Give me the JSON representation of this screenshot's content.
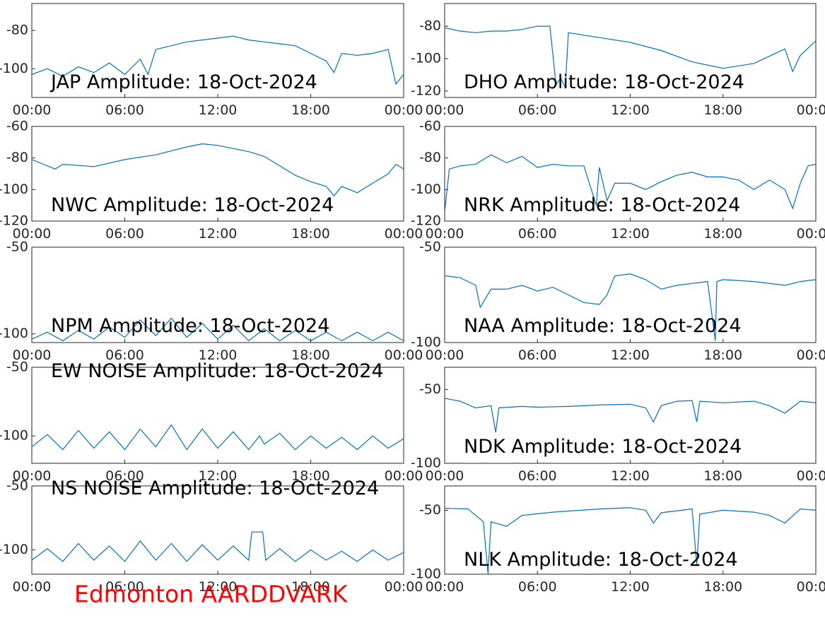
{
  "chart_data": [
    {
      "type": "line",
      "title": "JAP Amplitude: 18-Oct-2024",
      "color": "#0072bd",
      "x": [
        0,
        1,
        2,
        3,
        4,
        5,
        6,
        7,
        7.5,
        8,
        9,
        10,
        11,
        12,
        13,
        14,
        15,
        16,
        17,
        18,
        19,
        19.5,
        20,
        21,
        22,
        23,
        23.5,
        24
      ],
      "values": [
        -103,
        -100,
        -104,
        -99,
        -102,
        -97,
        -103,
        -95,
        -103,
        -90,
        -88,
        -86,
        -85,
        -84,
        -83,
        -85,
        -86,
        -87,
        -88,
        -92,
        -96,
        -102,
        -92,
        -93,
        -92,
        -90,
        -108,
        -103
      ],
      "xlim": [
        0,
        24
      ],
      "ylim": [
        -115,
        -66
      ],
      "yticks": [
        -100,
        -80
      ],
      "xticks": [
        {
          "value": 0,
          "label": "00:00"
        },
        {
          "value": 6,
          "label": "06:00"
        },
        {
          "value": 12,
          "label": "12:00"
        },
        {
          "value": 18,
          "label": "18:00"
        },
        {
          "value": 24,
          "label": "00:00"
        }
      ]
    },
    {
      "type": "line",
      "title": "DHO Amplitude: 18-Oct-2024",
      "color": "#0072bd",
      "x": [
        0,
        1,
        2,
        3,
        4,
        5,
        6,
        6.8,
        7.2,
        7.5,
        7.8,
        8,
        10,
        12,
        14,
        16,
        18,
        20,
        22,
        22.5,
        23,
        24
      ],
      "values": [
        -81,
        -83,
        -84,
        -83,
        -83,
        -82,
        -80,
        -80,
        -116,
        -112,
        -118,
        -84,
        -87,
        -90,
        -95,
        -102,
        -106,
        -103,
        -94,
        -108,
        -98,
        -89
      ],
      "xlim": [
        0,
        24
      ],
      "ylim": [
        -124,
        -66
      ],
      "yticks": [
        -120,
        -100,
        -80
      ],
      "xticks": [
        {
          "value": 0,
          "label": "00:00"
        },
        {
          "value": 6,
          "label": "06:00"
        },
        {
          "value": 12,
          "label": "12:00"
        },
        {
          "value": 18,
          "label": "18:00"
        },
        {
          "value": 24,
          "label": "00:00"
        }
      ]
    },
    {
      "type": "line",
      "title": "NWC Amplitude: 18-Oct-2024",
      "color": "#0072bd",
      "x": [
        0,
        1.5,
        2,
        4,
        6,
        8,
        10,
        11,
        12,
        13,
        14,
        15,
        16,
        17,
        18,
        19,
        19.5,
        20,
        21,
        22,
        23,
        23.5,
        24
      ],
      "values": [
        -81,
        -87,
        -84,
        -85.5,
        -81,
        -78,
        -73,
        -71,
        -72,
        -74,
        -76,
        -79,
        -85,
        -91,
        -95,
        -98,
        -104,
        -98,
        -102,
        -96,
        -90,
        -84,
        -87
      ],
      "xlim": [
        0,
        24
      ],
      "ylim": [
        -120,
        -60
      ],
      "yticks": [
        -120,
        -100,
        -80,
        -60
      ],
      "xticks": [
        {
          "value": 0,
          "label": "00:00"
        },
        {
          "value": 6,
          "label": "06:00"
        },
        {
          "value": 12,
          "label": "12:00"
        },
        {
          "value": 18,
          "label": "18:00"
        },
        {
          "value": 24,
          "label": "00:00"
        }
      ]
    },
    {
      "type": "line",
      "title": "NRK Amplitude: 18-Oct-2024",
      "color": "#0072bd",
      "x": [
        0,
        0.3,
        1,
        2,
        3,
        4,
        5,
        6,
        7,
        8,
        9,
        9.8,
        10,
        10.5,
        11,
        12,
        13,
        14,
        15,
        16,
        17,
        18,
        19,
        20,
        21,
        22,
        22.5,
        23,
        23.5,
        24
      ],
      "values": [
        -114,
        -87,
        -85,
        -84,
        -78,
        -83,
        -79,
        -86,
        -84,
        -85,
        -85,
        -110,
        -86,
        -107,
        -96,
        -96,
        -100,
        -95,
        -91,
        -89,
        -92,
        -92,
        -94,
        -100,
        -94,
        -100,
        -112,
        -96,
        -85,
        -84
      ],
      "xlim": [
        0,
        24
      ],
      "ylim": [
        -120,
        -60
      ],
      "yticks": [
        -120,
        -100,
        -80,
        -60
      ],
      "xticks": [
        {
          "value": 0,
          "label": "00:00"
        },
        {
          "value": 6,
          "label": "06:00"
        },
        {
          "value": 12,
          "label": "12:00"
        },
        {
          "value": 18,
          "label": "18:00"
        },
        {
          "value": 24,
          "label": "00:00"
        }
      ]
    },
    {
      "type": "line",
      "title": "NPM Amplitude: 18-Oct-2024",
      "color": "#0072bd",
      "x": [
        0,
        1,
        2,
        3,
        4,
        5,
        6,
        7,
        8,
        9,
        10,
        11,
        12,
        13,
        14,
        15,
        16,
        17,
        18,
        19,
        20,
        21,
        22,
        23,
        24
      ],
      "values": [
        -103,
        -99,
        -104,
        -98,
        -103,
        -96,
        -102,
        -92,
        -101,
        -91,
        -102,
        -94,
        -103,
        -95,
        -104,
        -97,
        -104,
        -98,
        -104,
        -99,
        -104,
        -99,
        -104,
        -99,
        -104
      ],
      "xlim": [
        0,
        24
      ],
      "ylim": [
        -105,
        -50
      ],
      "yticks": [
        -100,
        -50
      ],
      "xticks": [
        {
          "value": 0,
          "label": "00:00"
        },
        {
          "value": 6,
          "label": "06:00"
        },
        {
          "value": 12,
          "label": "12:00"
        },
        {
          "value": 18,
          "label": "18:00"
        },
        {
          "value": 24,
          "label": "00:00"
        }
      ]
    },
    {
      "type": "line",
      "title": "NAA Amplitude: 18-Oct-2024",
      "color": "#0072bd",
      "x": [
        0,
        1,
        2,
        2.3,
        3,
        4,
        5,
        6,
        7,
        8,
        9,
        10,
        10.5,
        11,
        12,
        13,
        14,
        15,
        16,
        17,
        17.5,
        17.6,
        18,
        20,
        22,
        23,
        24
      ],
      "values": [
        -65,
        -66,
        -70,
        -81.5,
        -72,
        -72,
        -70,
        -73,
        -71,
        -75,
        -79,
        -80,
        -75,
        -65,
        -64,
        -67,
        -72,
        -70,
        -69,
        -68,
        -99,
        -68,
        -67,
        -68,
        -70,
        -68,
        -67
      ],
      "xlim": [
        0,
        24
      ],
      "ylim": [
        -100,
        -50
      ],
      "yticks": [
        -100,
        -50
      ],
      "xticks": [
        {
          "value": 0,
          "label": "00:00"
        },
        {
          "value": 6,
          "label": "06:00"
        },
        {
          "value": 12,
          "label": "12:00"
        },
        {
          "value": 18,
          "label": "18:00"
        },
        {
          "value": 24,
          "label": "00:00"
        }
      ]
    },
    {
      "type": "line",
      "title": "EW NOISE Amplitude: 18-Oct-2024",
      "color": "#0072bd",
      "x": [
        0,
        1,
        2,
        3,
        4,
        5,
        6,
        7,
        8,
        9,
        10,
        11,
        12,
        13,
        14,
        14.7,
        15,
        16,
        17,
        18,
        19,
        20,
        21,
        22,
        23,
        24
      ],
      "values": [
        -108,
        -99,
        -110,
        -96,
        -109,
        -97,
        -110,
        -95,
        -108,
        -92,
        -110,
        -95,
        -109,
        -97,
        -110,
        -100,
        -106,
        -98,
        -110,
        -100,
        -109,
        -101,
        -110,
        -100,
        -109,
        -102
      ],
      "xlim": [
        0,
        24
      ],
      "ylim": [
        -120,
        -50
      ],
      "yticks": [
        -100,
        -50
      ],
      "xticks": [
        {
          "value": 0,
          "label": "00:00"
        },
        {
          "value": 6,
          "label": "06:00"
        },
        {
          "value": 12,
          "label": "12:00"
        },
        {
          "value": 18,
          "label": "18:00"
        },
        {
          "value": 24,
          "label": "00:00"
        }
      ]
    },
    {
      "type": "line",
      "title": "NDK Amplitude: 18-Oct-2024",
      "color": "#0072bd",
      "x": [
        0,
        1,
        2,
        3,
        3.3,
        3.5,
        5,
        6,
        8,
        10,
        12,
        13,
        13.5,
        14,
        15,
        16,
        16.3,
        16.5,
        18,
        20,
        21,
        22,
        23,
        24
      ],
      "values": [
        -56,
        -58,
        -62.5,
        -61,
        -79,
        -62.5,
        -61.5,
        -62,
        -61.5,
        -60.5,
        -60,
        -62.5,
        -72,
        -61,
        -58,
        -57.5,
        -72,
        -58,
        -59,
        -58,
        -61,
        -66,
        -58,
        -59
      ],
      "xlim": [
        0,
        24
      ],
      "ylim": [
        -100,
        -35
      ],
      "yticks": [
        -100,
        -50
      ],
      "xticks": [
        {
          "value": 0,
          "label": "00:00"
        },
        {
          "value": 6,
          "label": "06:00"
        },
        {
          "value": 12,
          "label": "12:00"
        },
        {
          "value": 18,
          "label": "18:00"
        },
        {
          "value": 24,
          "label": "00:00"
        }
      ]
    },
    {
      "type": "line",
      "title": "NS NOISE Amplitude: 18-Oct-2024",
      "color": "#0072bd",
      "x": [
        0,
        1,
        2,
        3,
        4,
        5,
        6,
        7,
        8,
        9,
        10,
        11,
        12,
        13,
        14,
        14.2,
        14.9,
        15.1,
        16,
        17,
        18,
        19,
        20,
        21,
        22,
        23,
        24
      ],
      "values": [
        -108,
        -99,
        -109,
        -95,
        -108,
        -97,
        -109,
        -93,
        -108,
        -95,
        -109,
        -96,
        -108,
        -97,
        -108,
        -86,
        -86,
        -108,
        -99,
        -109,
        -100,
        -108,
        -101,
        -109,
        -100,
        -108,
        -102
      ],
      "xlim": [
        0,
        24
      ],
      "ylim": [
        -119,
        -50
      ],
      "yticks": [
        -100,
        -50
      ],
      "xticks": [
        {
          "value": 0,
          "label": "00:00"
        },
        {
          "value": 6,
          "label": "06:00"
        },
        {
          "value": 12,
          "label": "12:00"
        },
        {
          "value": 18,
          "label": "18:00"
        },
        {
          "value": 24,
          "label": "00:00"
        }
      ]
    },
    {
      "type": "line",
      "title": "NLK Amplitude: 18-Oct-2024",
      "color": "#0072bd",
      "x": [
        0,
        1.5,
        2.5,
        2.8,
        3,
        4,
        5,
        7,
        10,
        12,
        13,
        13.5,
        14,
        16,
        16.3,
        16.5,
        18,
        20,
        21,
        22,
        23,
        24
      ],
      "values": [
        -48.4,
        -49,
        -59,
        -99.5,
        -59,
        -62.6,
        -54,
        -51.5,
        -49,
        -48,
        -50,
        -60,
        -52,
        -49,
        -93,
        -53,
        -50,
        -51.5,
        -54,
        -60,
        -49,
        -50
      ],
      "xlim": [
        0,
        24
      ],
      "ylim": [
        -100,
        -31
      ],
      "yticks": [
        -100,
        -50
      ],
      "xticks": [
        {
          "value": 0,
          "label": "00:00"
        },
        {
          "value": 6,
          "label": "06:00"
        },
        {
          "value": 12,
          "label": "12:00"
        },
        {
          "value": 18,
          "label": "18:00"
        },
        {
          "value": 24,
          "label": "00:00"
        }
      ]
    }
  ],
  "footer": "Edmonton AARDDVARK"
}
